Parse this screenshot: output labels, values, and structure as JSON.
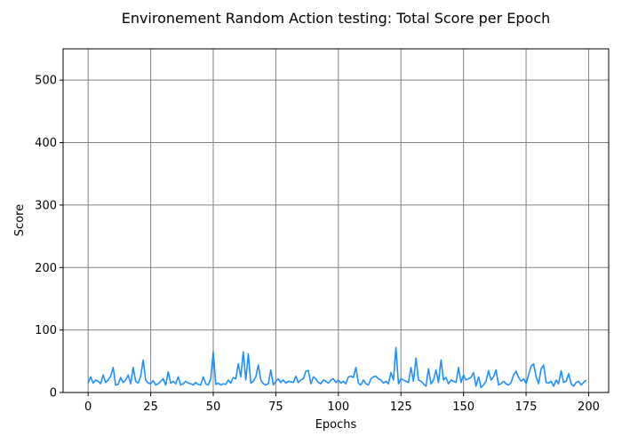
{
  "chart_data": {
    "type": "line",
    "title": "Environement Random Action testing: Total Score per Epoch",
    "xlabel": "Epochs",
    "ylabel": "Score",
    "xlim": [
      -10,
      208
    ],
    "ylim": [
      0,
      550
    ],
    "xticks": [
      0,
      25,
      50,
      75,
      100,
      125,
      150,
      175,
      200
    ],
    "yticks": [
      0,
      100,
      200,
      300,
      400,
      500
    ],
    "grid": true,
    "line_color": "#1e90ff",
    "series": [
      {
        "x": [
          0,
          1,
          2,
          3,
          4,
          5,
          6,
          7,
          8,
          9,
          10,
          11,
          12,
          13,
          14,
          15,
          16,
          17,
          18,
          19,
          20,
          21,
          22,
          23,
          24,
          25,
          26,
          27,
          28,
          29,
          30,
          31,
          32,
          33,
          34,
          35,
          36,
          37,
          38,
          39,
          40,
          41,
          42,
          43,
          44,
          45,
          46,
          47,
          48,
          49,
          50,
          51,
          52,
          53,
          54,
          55,
          56,
          57,
          58,
          59,
          60,
          61,
          62,
          63,
          64,
          65,
          66,
          67,
          68,
          69,
          70,
          71,
          72,
          73,
          74,
          75,
          76,
          77,
          78,
          79,
          80,
          81,
          82,
          83,
          84,
          85,
          86,
          87,
          88,
          89,
          90,
          91,
          92,
          93,
          94,
          95,
          96,
          97,
          98,
          99,
          100,
          101,
          102,
          103,
          104,
          105,
          106,
          107,
          108,
          109,
          110,
          111,
          112,
          113,
          114,
          115,
          116,
          117,
          118,
          119,
          120,
          121,
          122,
          123,
          124,
          125,
          126,
          127,
          128,
          129,
          130,
          131,
          132,
          133,
          134,
          135,
          136,
          137,
          138,
          139,
          140,
          141,
          142,
          143,
          144,
          145,
          146,
          147,
          148,
          149,
          150,
          151,
          152,
          153,
          154,
          155,
          156,
          157,
          158,
          159,
          160,
          161,
          162,
          163,
          164,
          165,
          166,
          167,
          168,
          169,
          170,
          171,
          172,
          173,
          174,
          175,
          176,
          177,
          178,
          179,
          180,
          181,
          182,
          183,
          184,
          185,
          186,
          187,
          188,
          189,
          190,
          191,
          192,
          193,
          194,
          195,
          196,
          197,
          198,
          199
        ],
        "y": [
          15,
          25,
          15,
          20,
          18,
          14,
          28,
          16,
          20,
          26,
          40,
          12,
          13,
          24,
          16,
          20,
          28,
          14,
          40,
          18,
          15,
          26,
          52,
          20,
          15,
          14,
          19,
          12,
          14,
          18,
          22,
          12,
          33,
          15,
          18,
          14,
          25,
          12,
          14,
          18,
          15,
          14,
          12,
          16,
          13,
          12,
          25,
          14,
          12,
          22,
          65,
          13,
          15,
          12,
          14,
          13,
          20,
          15,
          24,
          22,
          46,
          25,
          65,
          20,
          62,
          15,
          18,
          25,
          44,
          20,
          14,
          12,
          14,
          36,
          12,
          18,
          22,
          16,
          20,
          15,
          18,
          17,
          16,
          26,
          16,
          20,
          22,
          34,
          35,
          14,
          25,
          22,
          16,
          14,
          20,
          18,
          15,
          20,
          22,
          16,
          20,
          15,
          18,
          14,
          25,
          26,
          24,
          40,
          15,
          12,
          20,
          14,
          12,
          22,
          25,
          26,
          22,
          20,
          15,
          18,
          14,
          32,
          20,
          72,
          14,
          22,
          20,
          18,
          16,
          40,
          18,
          55,
          20,
          18,
          14,
          10,
          38,
          14,
          20,
          36,
          16,
          52,
          20,
          24,
          14,
          20,
          18,
          16,
          40,
          16,
          28,
          20,
          22,
          24,
          32,
          10,
          25,
          8,
          12,
          18,
          35,
          20,
          25,
          36,
          12,
          14,
          18,
          14,
          12,
          16,
          28,
          34,
          24,
          18,
          22,
          14,
          28,
          42,
          46,
          25,
          14,
          38,
          44,
          16,
          15,
          18,
          10,
          20,
          14,
          35,
          16,
          18,
          30,
          14,
          10,
          16,
          18,
          12,
          16,
          20
        ]
      }
    ]
  }
}
